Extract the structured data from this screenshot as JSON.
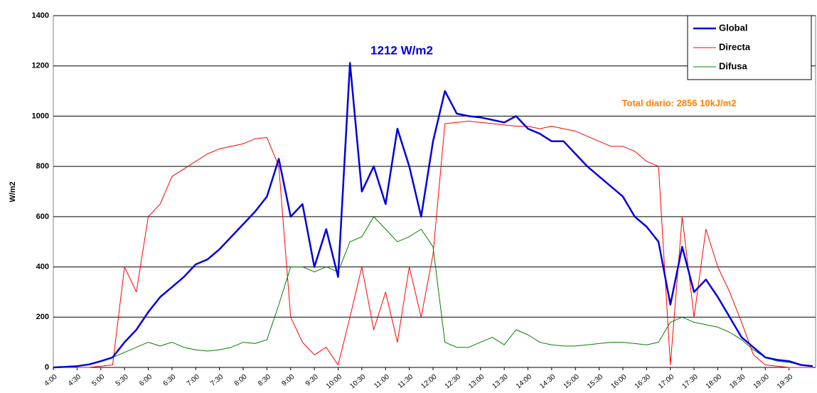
{
  "chart_data": {
    "type": "line",
    "y_label": "W/m2",
    "categories": [
      "4:00",
      null,
      "4:30",
      null,
      "5:00",
      null,
      "5:30",
      null,
      "6:00",
      null,
      "6:30",
      null,
      "7:00",
      null,
      "7:30",
      null,
      "8:00",
      null,
      "8:30",
      null,
      "9:00",
      null,
      "9:30",
      null,
      "10:00",
      null,
      "10:30",
      null,
      "11:00",
      null,
      "11:30",
      null,
      "12:00",
      null,
      "12:30",
      null,
      "13:00",
      null,
      "13:30",
      null,
      "14:00",
      null,
      "14:30",
      null,
      "15:00",
      null,
      "15:30",
      null,
      "16:00",
      null,
      "16:30",
      null,
      "17:00",
      null,
      "17:30",
      null,
      "18:00",
      null,
      "18:30",
      null,
      "19:00",
      null,
      "19:30",
      null,
      null
    ],
    "series": [
      {
        "name": "Global",
        "color": "#0000dd",
        "values": [
          0,
          2,
          5,
          12,
          25,
          40,
          100,
          150,
          220,
          280,
          320,
          360,
          410,
          430,
          470,
          520,
          570,
          620,
          680,
          830,
          600,
          650,
          400,
          550,
          360,
          1212,
          700,
          800,
          650,
          950,
          800,
          600,
          900,
          1100,
          1010,
          1000,
          995,
          985,
          975,
          1000,
          950,
          930,
          900,
          900,
          850,
          800,
          760,
          720,
          680,
          600,
          560,
          500,
          250,
          480,
          300,
          350,
          280,
          200,
          120,
          80,
          40,
          30,
          25,
          10,
          5
        ]
      },
      {
        "name": "Directa",
        "color": "#ff0000",
        "values": [
          0,
          0,
          0,
          0,
          5,
          10,
          400,
          300,
          600,
          650,
          760,
          790,
          820,
          850,
          870,
          880,
          890,
          910,
          915,
          800,
          200,
          100,
          50,
          80,
          10,
          200,
          400,
          150,
          300,
          100,
          400,
          200,
          450,
          970,
          975,
          980,
          975,
          970,
          965,
          960,
          960,
          950,
          960,
          950,
          940,
          920,
          900,
          880,
          880,
          860,
          820,
          800,
          10,
          600,
          200,
          550,
          400,
          300,
          180,
          50,
          10,
          5,
          0,
          0,
          0
        ]
      },
      {
        "name": "Difusa",
        "color": "#008000",
        "values": [
          0,
          2,
          5,
          10,
          25,
          40,
          60,
          80,
          100,
          85,
          100,
          80,
          70,
          65,
          70,
          80,
          100,
          95,
          110,
          250,
          400,
          400,
          380,
          400,
          380,
          500,
          520,
          600,
          550,
          500,
          520,
          550,
          480,
          100,
          80,
          80,
          100,
          120,
          90,
          150,
          130,
          100,
          90,
          85,
          85,
          90,
          95,
          100,
          100,
          95,
          90,
          100,
          180,
          200,
          180,
          170,
          160,
          140,
          110,
          70,
          40,
          25,
          20,
          10,
          5
        ]
      }
    ],
    "annotations": [
      {
        "text": "1212  W/m2",
        "color": "#0000dd"
      },
      {
        "text": "Total diario:  2856  10kJ/m2",
        "color": "#ff8000"
      }
    ],
    "ylim": [
      0,
      1400
    ],
    "yticks": [
      0,
      200,
      400,
      600,
      800,
      1000,
      1200,
      1400
    ],
    "grid": true,
    "legend": "top-right"
  }
}
